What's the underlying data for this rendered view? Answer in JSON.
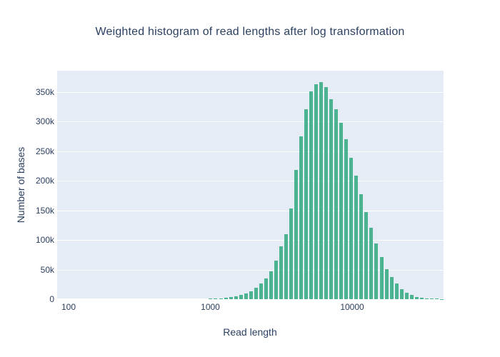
{
  "title": "Weighted histogram of read lengths after log transformation",
  "colors": {
    "bar": "#4cb391",
    "plot_background": "#e5ecf6",
    "gridline": "#ffffff",
    "text": "#2a3f5f",
    "page_background": "#ffffff"
  },
  "chart_data": {
    "type": "bar",
    "title": "Weighted histogram of read lengths after log transformation",
    "xlabel": "Read length",
    "ylabel": "Number of bases",
    "x_scale": "log",
    "grid": "horizontal-only",
    "legend": false,
    "ylim": [
      0,
      385600
    ],
    "xlim": [
      83,
      44100
    ],
    "y_ticks": [
      {
        "value": 0,
        "label": "0"
      },
      {
        "value": 50000,
        "label": "50k"
      },
      {
        "value": 100000,
        "label": "100k"
      },
      {
        "value": 150000,
        "label": "150k"
      },
      {
        "value": 200000,
        "label": "200k"
      },
      {
        "value": 250000,
        "label": "250k"
      },
      {
        "value": 300000,
        "label": "300k"
      },
      {
        "value": 350000,
        "label": "350k"
      }
    ],
    "x_ticks": [
      {
        "value": 100,
        "label": "100"
      },
      {
        "value": 1000,
        "label": "1000"
      },
      {
        "value": 10000,
        "label": "10000"
      }
    ],
    "bars": [
      {
        "x": 1005,
        "y": 1200
      },
      {
        "x": 1090,
        "y": 1400
      },
      {
        "x": 1183,
        "y": 1800
      },
      {
        "x": 1283,
        "y": 2500
      },
      {
        "x": 1392,
        "y": 3500
      },
      {
        "x": 1510,
        "y": 4800
      },
      {
        "x": 1639,
        "y": 6900
      },
      {
        "x": 1778,
        "y": 9600
      },
      {
        "x": 1929,
        "y": 13600
      },
      {
        "x": 2093,
        "y": 18900
      },
      {
        "x": 2271,
        "y": 26900
      },
      {
        "x": 2464,
        "y": 35000
      },
      {
        "x": 2673,
        "y": 47000
      },
      {
        "x": 2900,
        "y": 65000
      },
      {
        "x": 3147,
        "y": 89000
      },
      {
        "x": 3414,
        "y": 110000
      },
      {
        "x": 3704,
        "y": 153000
      },
      {
        "x": 4019,
        "y": 218000
      },
      {
        "x": 4361,
        "y": 275000
      },
      {
        "x": 4731,
        "y": 321000
      },
      {
        "x": 5133,
        "y": 351000
      },
      {
        "x": 5570,
        "y": 363000
      },
      {
        "x": 6043,
        "y": 366000
      },
      {
        "x": 6557,
        "y": 358000
      },
      {
        "x": 7114,
        "y": 338000
      },
      {
        "x": 7719,
        "y": 320000
      },
      {
        "x": 8375,
        "y": 298000
      },
      {
        "x": 9086,
        "y": 270000
      },
      {
        "x": 9858,
        "y": 239000
      },
      {
        "x": 10696,
        "y": 208000
      },
      {
        "x": 11605,
        "y": 177000
      },
      {
        "x": 12591,
        "y": 147000
      },
      {
        "x": 13661,
        "y": 120000
      },
      {
        "x": 14822,
        "y": 94000
      },
      {
        "x": 16082,
        "y": 71000
      },
      {
        "x": 17449,
        "y": 51000
      },
      {
        "x": 18932,
        "y": 38000
      },
      {
        "x": 20541,
        "y": 26000
      },
      {
        "x": 22287,
        "y": 17000
      },
      {
        "x": 24181,
        "y": 11000
      },
      {
        "x": 26236,
        "y": 7000
      },
      {
        "x": 28466,
        "y": 4000
      },
      {
        "x": 30885,
        "y": 2400
      },
      {
        "x": 33510,
        "y": 1500
      },
      {
        "x": 36358,
        "y": 1200
      },
      {
        "x": 39448,
        "y": 800
      },
      {
        "x": 42800,
        "y": 500
      }
    ]
  }
}
